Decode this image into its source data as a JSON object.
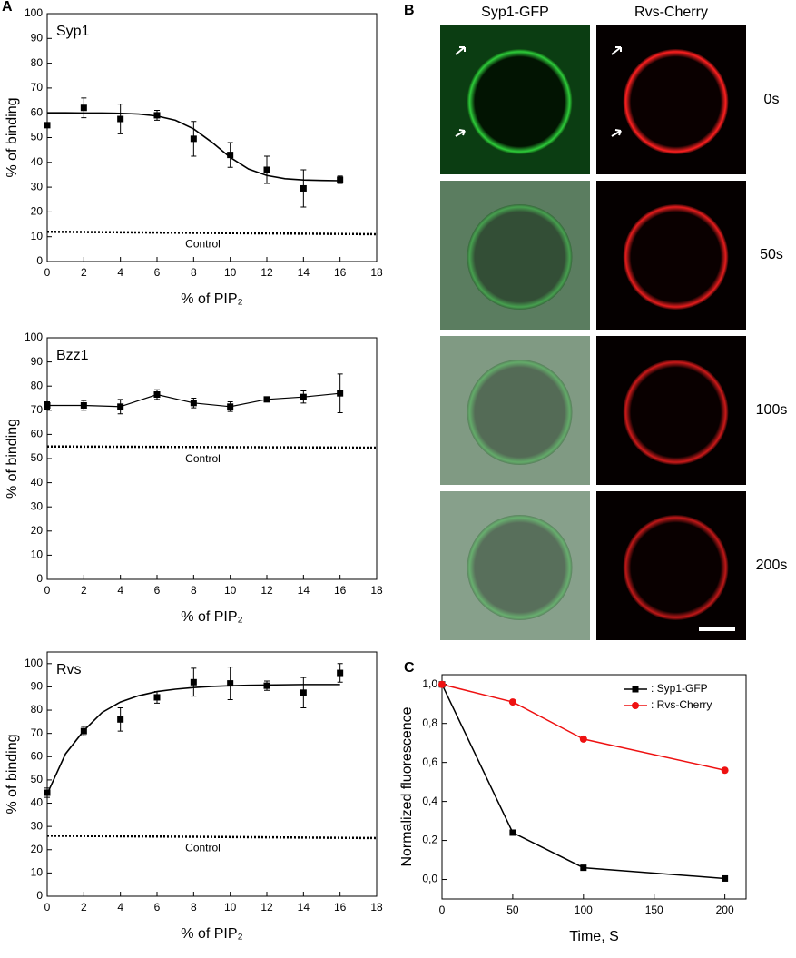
{
  "chart_data": [
    {
      "type": "scatter",
      "panel": "A",
      "title": "Syp1",
      "xlabel": "% of PIP₂",
      "ylabel": "% of binding",
      "xlim": [
        0,
        18
      ],
      "xticks": [
        0,
        2,
        4,
        6,
        8,
        10,
        12,
        14,
        16,
        18
      ],
      "ylim": [
        0,
        100
      ],
      "yticks": [
        0,
        10,
        20,
        30,
        40,
        50,
        60,
        70,
        80,
        90,
        100
      ],
      "points": {
        "x": [
          0,
          2,
          4,
          6,
          8,
          10,
          12,
          14,
          16
        ],
        "values": [
          55,
          62,
          57.5,
          59,
          49.5,
          43,
          37,
          29.5,
          33
        ],
        "errors": [
          0,
          4,
          6,
          2,
          7,
          5,
          5.5,
          7.5,
          1.5
        ]
      },
      "fit": {
        "x": [
          0,
          1,
          2,
          3,
          4,
          5,
          6,
          7,
          8,
          9,
          10,
          11,
          12,
          13,
          14,
          15,
          16
        ],
        "values": [
          60,
          60,
          59.9,
          59.9,
          59.8,
          59.5,
          58.7,
          57,
          53.5,
          48.1,
          42,
          37.3,
          34.7,
          33.4,
          32.9,
          32.7,
          32.6
        ]
      },
      "control": {
        "label": "Control",
        "x": [
          0,
          18
        ],
        "values": [
          12,
          11
        ]
      }
    },
    {
      "type": "scatter",
      "title": "Bzz1",
      "xlabel": "% of PIP₂",
      "ylabel": "% of binding",
      "connect": true,
      "xlim": [
        0,
        18
      ],
      "xticks": [
        0,
        2,
        4,
        6,
        8,
        10,
        12,
        14,
        16,
        18
      ],
      "ylim": [
        0,
        100
      ],
      "yticks": [
        0,
        10,
        20,
        30,
        40,
        50,
        60,
        70,
        80,
        90,
        100
      ],
      "points": {
        "x": [
          0,
          2,
          4,
          6,
          8,
          10,
          12,
          14,
          16
        ],
        "values": [
          72,
          72,
          71.5,
          76.5,
          73,
          71.5,
          74.5,
          75.5,
          77
        ],
        "errors": [
          1.5,
          2,
          3,
          2,
          2,
          2,
          0.5,
          2.5,
          8
        ]
      },
      "control": {
        "label": "Control",
        "x": [
          0,
          18
        ],
        "values": [
          55,
          54.5
        ]
      }
    },
    {
      "type": "scatter",
      "title": "Rvs",
      "xlabel": "% of PIP₂",
      "ylabel": "% of binding",
      "xlim": [
        0,
        18
      ],
      "xticks": [
        0,
        2,
        4,
        6,
        8,
        10,
        12,
        14,
        16,
        18
      ],
      "ylim": [
        0,
        105
      ],
      "yticks": [
        0,
        10,
        20,
        30,
        40,
        50,
        60,
        70,
        80,
        90,
        100
      ],
      "points": {
        "x": [
          0,
          2,
          4,
          6,
          8,
          10,
          12,
          14,
          16
        ],
        "values": [
          44.5,
          71,
          76,
          85.5,
          92,
          91.5,
          90.5,
          87.5,
          96
        ],
        "errors": [
          2,
          2,
          5,
          2.5,
          6,
          7,
          2,
          6.5,
          4
        ]
      },
      "fit": {
        "x": [
          0,
          1,
          2,
          3,
          4,
          5,
          6,
          7,
          8,
          9,
          10,
          11,
          12,
          13,
          14,
          15,
          16
        ],
        "values": [
          44,
          61.2,
          71.2,
          79,
          83.5,
          86.2,
          88,
          89,
          89.7,
          90.2,
          90.5,
          90.7,
          90.8,
          90.9,
          91,
          91,
          91
        ]
      },
      "control": {
        "label": "Control",
        "x": [
          0,
          18
        ],
        "values": [
          26,
          25
        ]
      }
    },
    {
      "type": "line",
      "panel": "C",
      "xlabel": "Time, S",
      "ylabel": "Normalized fluorescence",
      "legend": "upper right",
      "x": [
        0,
        50,
        100,
        200
      ],
      "xlim": [
        0,
        215
      ],
      "xticks": [
        0,
        50,
        100,
        150,
        200
      ],
      "ylim": [
        -0.1,
        1.05
      ],
      "yticks": [
        {
          "value": 0,
          "label": "0,0"
        },
        {
          "value": 0.2,
          "label": "0,2"
        },
        {
          "value": 0.4,
          "label": "0,4"
        },
        {
          "value": 0.6,
          "label": "0,6"
        },
        {
          "value": 0.8,
          "label": "0,8"
        },
        {
          "value": 1,
          "label": "1,0"
        }
      ],
      "series": [
        {
          "name": ": Syp1-GFP",
          "color": "#000000",
          "marker": "square",
          "values": [
            1,
            0.24,
            0.06,
            0.005
          ]
        },
        {
          "name": ": Rvs-Cherry",
          "color": "#ee1111",
          "marker": "circle",
          "values": [
            1,
            0.91,
            0.72,
            0.56
          ]
        }
      ]
    }
  ],
  "panel_b": {
    "label": "B",
    "columns": [
      "Syp1-GFP",
      "Rvs-Cherry"
    ],
    "rows": [
      "0s",
      "50s",
      "100s",
      "200s"
    ]
  }
}
